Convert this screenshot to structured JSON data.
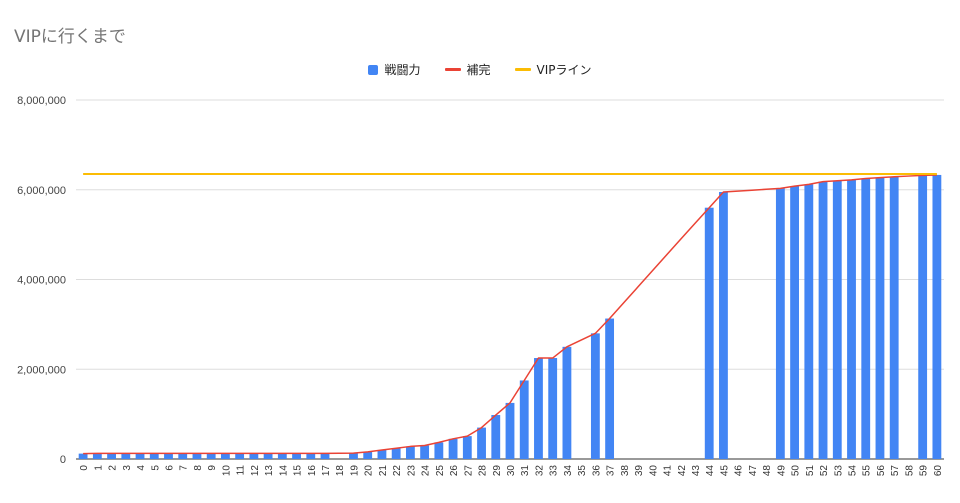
{
  "chart_data": {
    "type": "bar",
    "title": "VIPに行くまで",
    "xlabel": "",
    "ylabel": "",
    "ylim": [
      0,
      8000000
    ],
    "yticks": [
      "0",
      "2,000,000",
      "4,000,000",
      "6,000,000",
      "8,000,000"
    ],
    "categories": [
      "0",
      "1",
      "2",
      "3",
      "4",
      "5",
      "6",
      "7",
      "8",
      "9",
      "10",
      "11",
      "12",
      "13",
      "14",
      "15",
      "16",
      "17",
      "18",
      "19",
      "20",
      "21",
      "22",
      "23",
      "24",
      "25",
      "26",
      "27",
      "28",
      "29",
      "30",
      "31",
      "32",
      "33",
      "34",
      "35",
      "36",
      "37",
      "38",
      "39",
      "40",
      "41",
      "42",
      "43",
      "44",
      "45",
      "46",
      "47",
      "48",
      "49",
      "50",
      "51",
      "52",
      "53",
      "54",
      "55",
      "56",
      "57",
      "58",
      "59",
      "60"
    ],
    "grid": true,
    "legend_position": "top-center",
    "series": [
      {
        "name": "戦闘力",
        "kind": "bar",
        "color": "#4285f4",
        "values": [
          120000,
          125000,
          125000,
          125000,
          125000,
          125000,
          125000,
          125000,
          125000,
          125000,
          125000,
          125000,
          125000,
          125000,
          125000,
          125000,
          125000,
          125000,
          null,
          130000,
          160000,
          200000,
          240000,
          280000,
          300000,
          370000,
          450000,
          510000,
          700000,
          980000,
          1250000,
          1750000,
          2250000,
          2250000,
          2500000,
          null,
          2800000,
          3130000,
          null,
          null,
          null,
          null,
          null,
          null,
          5600000,
          5950000,
          null,
          null,
          null,
          6030000,
          6080000,
          6120000,
          6180000,
          6200000,
          6220000,
          6250000,
          6270000,
          6290000,
          null,
          6320000,
          6330000
        ]
      },
      {
        "name": "補完",
        "kind": "line",
        "color": "#ea4335",
        "values": [
          120000,
          125000,
          125000,
          125000,
          125000,
          125000,
          125000,
          125000,
          125000,
          125000,
          125000,
          125000,
          125000,
          125000,
          125000,
          125000,
          125000,
          125000,
          127500,
          130000,
          160000,
          200000,
          240000,
          280000,
          300000,
          370000,
          450000,
          510000,
          700000,
          980000,
          1250000,
          1750000,
          2250000,
          2250000,
          2500000,
          2650000,
          2800000,
          3130000,
          3484000,
          3838000,
          4192000,
          4546000,
          4900000,
          5250000,
          5600000,
          5950000,
          5970000,
          5990000,
          6010000,
          6030000,
          6080000,
          6120000,
          6180000,
          6200000,
          6220000,
          6250000,
          6270000,
          6290000,
          6305000,
          6320000,
          6330000
        ]
      },
      {
        "name": "VIPライン",
        "kind": "line",
        "color": "#fbbc04",
        "constant": 6350000
      }
    ]
  }
}
